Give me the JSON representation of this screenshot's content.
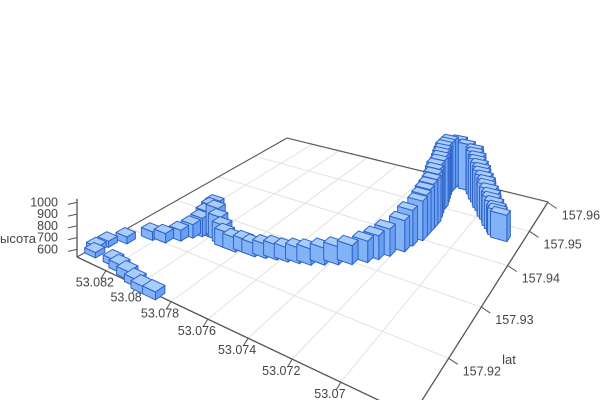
{
  "chart_data": {
    "type": "bar3d",
    "title": "",
    "zlabel": "высота",
    "ylabel": "lat",
    "xlabel": "",
    "x_tick_vals": [
      53.082,
      53.08,
      53.078,
      53.076,
      53.074,
      53.072,
      53.07
    ],
    "x_tick_labels": [
      "53.082",
      "53.08",
      "53.078",
      "53.076",
      "53.074",
      "53.072",
      "53.07"
    ],
    "y_tick_vals": [
      157.92,
      157.93,
      157.94,
      157.95,
      157.96
    ],
    "y_tick_labels": [
      "157.92",
      "157.93",
      "157.94",
      "157.95",
      "157.96"
    ],
    "z_tick_vals": [
      600,
      700,
      800,
      900,
      1000
    ],
    "z_tick_labels": [
      "600",
      "700",
      "800",
      "900",
      "1000"
    ],
    "x_range": [
      53.084,
      53.0674
    ],
    "y_range": [
      157.911,
      157.9602
    ],
    "z_base": 535,
    "grid": true,
    "legend": false,
    "track": [
      [
        53.079,
        157.911,
        595
      ],
      [
        53.0797,
        157.911,
        592
      ],
      [
        53.0803,
        157.9115,
        594
      ],
      [
        53.081,
        157.912,
        600
      ],
      [
        53.0817,
        157.9125,
        598
      ],
      [
        53.0823,
        157.913,
        590
      ],
      [
        53.0836,
        157.913,
        580
      ],
      [
        53.0839,
        157.914,
        582
      ],
      [
        53.0838,
        157.9157,
        588
      ],
      [
        53.0833,
        157.9177,
        596
      ],
      [
        53.0825,
        157.9203,
        610
      ],
      [
        53.0818,
        157.9208,
        618
      ],
      [
        53.0813,
        157.9223,
        630
      ],
      [
        53.081,
        157.9238,
        655
      ],
      [
        53.0807,
        157.9248,
        700
      ],
      [
        53.0805,
        157.9253,
        755
      ],
      [
        53.0803,
        157.9258,
        805
      ],
      [
        53.0802,
        157.9262,
        825
      ],
      [
        53.08,
        157.9258,
        795
      ],
      [
        53.0797,
        157.9253,
        745
      ],
      [
        53.0793,
        157.9248,
        705
      ],
      [
        53.079,
        157.9243,
        675
      ],
      [
        53.0785,
        157.9243,
        655
      ],
      [
        53.078,
        157.9248,
        650
      ],
      [
        53.0775,
        157.9248,
        645
      ],
      [
        53.077,
        157.9253,
        652
      ],
      [
        53.0765,
        157.9258,
        658
      ],
      [
        53.076,
        157.9262,
        650
      ],
      [
        53.0755,
        157.9267,
        662
      ],
      [
        53.075,
        157.9272,
        668
      ],
      [
        53.0745,
        157.9282,
        672
      ],
      [
        53.074,
        157.9292,
        682
      ],
      [
        53.0735,
        157.9302,
        692
      ],
      [
        53.073,
        157.9317,
        712
      ],
      [
        53.0727,
        157.9331,
        732
      ],
      [
        53.0724,
        157.9346,
        762
      ],
      [
        53.072,
        157.9366,
        800
      ],
      [
        53.0719,
        157.9385,
        840
      ],
      [
        53.0717,
        157.9405,
        878
      ],
      [
        53.0717,
        157.9418,
        898
      ],
      [
        53.0717,
        157.943,
        918
      ],
      [
        53.0717,
        157.9442,
        935
      ],
      [
        53.0717,
        157.9454,
        950
      ],
      [
        53.0718,
        157.9467,
        963
      ],
      [
        53.0719,
        157.9479,
        976
      ],
      [
        53.072,
        157.9491,
        986
      ],
      [
        53.072,
        157.9504,
        996
      ],
      [
        53.0721,
        157.9516,
        1003
      ],
      [
        53.0722,
        157.9528,
        1010
      ],
      [
        53.0723,
        157.954,
        1015
      ],
      [
        53.0724,
        157.9553,
        1020
      ],
      [
        53.0724,
        157.9565,
        1023
      ],
      [
        53.0724,
        157.9577,
        1026
      ],
      [
        53.072,
        157.9587,
        1016
      ],
      [
        53.0715,
        157.9582,
        1000
      ],
      [
        53.071,
        157.9577,
        982
      ],
      [
        53.0709,
        157.957,
        968
      ],
      [
        53.0707,
        157.9563,
        952
      ],
      [
        53.0706,
        157.9555,
        937
      ],
      [
        53.0704,
        157.9548,
        922
      ],
      [
        53.0702,
        157.954,
        908
      ],
      [
        53.0701,
        157.9533,
        893
      ],
      [
        53.0699,
        157.9526,
        878
      ],
      [
        53.0697,
        157.9518,
        863
      ],
      [
        53.0696,
        157.9511,
        848
      ],
      [
        53.0694,
        157.9504,
        833
      ],
      [
        53.0692,
        157.9496,
        818
      ],
      [
        53.0691,
        157.9489,
        803
      ],
      [
        53.0689,
        157.9482,
        790
      ],
      [
        53.0687,
        157.9474,
        778
      ],
      [
        53.0686,
        157.9469,
        770
      ],
      [
        53.0684,
        157.9464,
        762
      ]
    ]
  },
  "colors": {
    "bar_top": "#A9CDFB",
    "bar_front": "#82B3F7",
    "bar_side": "#699FF3",
    "bar_edge": "#2F63C8",
    "grid_line": "#E2E2E2",
    "axis_line": "#555555",
    "tick_text": "#444444",
    "background": "#FFFFFF"
  }
}
